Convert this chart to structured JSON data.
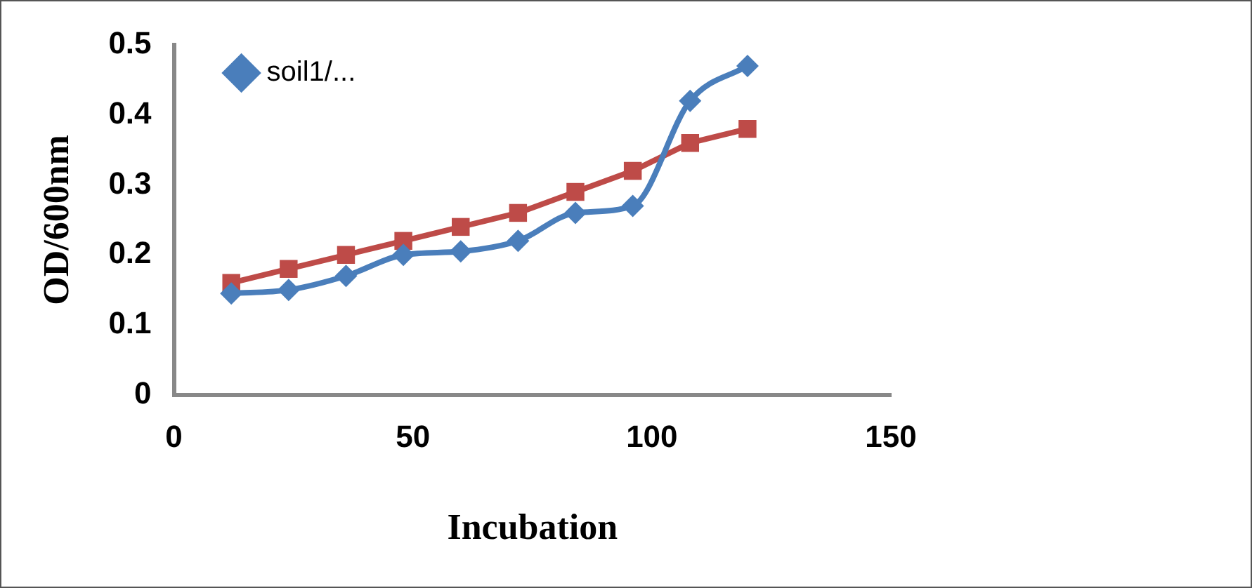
{
  "chart_data": {
    "type": "line",
    "xlabel": "Incubation",
    "ylabel": "OD/600nm",
    "x": [
      12,
      24,
      36,
      48,
      60,
      72,
      84,
      96,
      108,
      120
    ],
    "series": [
      {
        "name": "soil1/...",
        "color": "#4a7ebb",
        "marker": "diamond",
        "values": [
          0.145,
          0.15,
          0.17,
          0.2,
          0.205,
          0.22,
          0.26,
          0.27,
          0.42,
          0.47
        ]
      },
      {
        "color": "#be4b48",
        "marker": "square",
        "values": [
          0.16,
          0.18,
          0.2,
          0.22,
          0.24,
          0.26,
          0.29,
          0.32,
          0.36,
          0.38
        ]
      }
    ],
    "xlim": [
      0,
      150
    ],
    "xticks": [
      0,
      50,
      100,
      150
    ],
    "ylim": [
      0,
      0.5
    ],
    "yticks": [
      0,
      0.1,
      0.2,
      0.3,
      0.4,
      0.5
    ],
    "grid": false,
    "legend": "top left"
  }
}
